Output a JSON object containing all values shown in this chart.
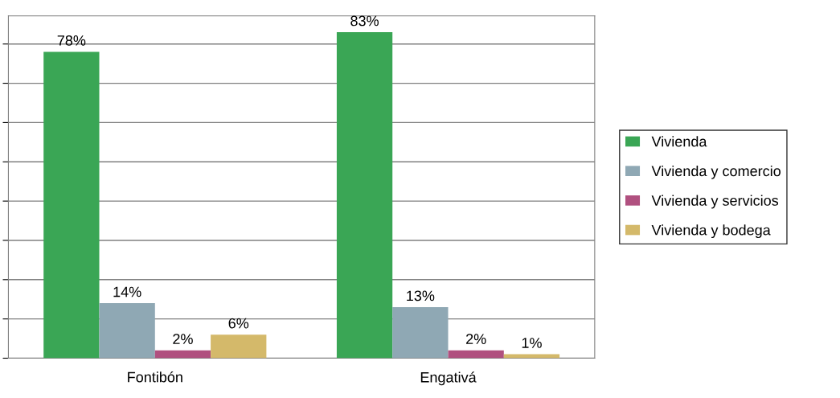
{
  "chart_data": {
    "type": "bar",
    "categories": [
      "Fontibón",
      "Engativá"
    ],
    "series": [
      {
        "name": "Vivienda",
        "color": "#3aa655",
        "values": [
          78,
          83
        ],
        "value_labels": [
          "78%",
          "83%"
        ]
      },
      {
        "name": "Vivienda y comercio",
        "color": "#8fa8b4",
        "values": [
          14,
          13
        ],
        "value_labels": [
          "14%",
          "13%"
        ]
      },
      {
        "name": "Vivienda y servicios",
        "color": "#b0507f",
        "values": [
          2,
          2
        ],
        "value_labels": [
          "2%",
          "2%"
        ]
      },
      {
        "name": "Vivienda y bodega",
        "color": "#d4b96a",
        "values": [
          6,
          1
        ],
        "value_labels": [
          "6%",
          "1%"
        ]
      }
    ],
    "tick_labels": "x",
    "grid": "y",
    "legend": "right"
  }
}
